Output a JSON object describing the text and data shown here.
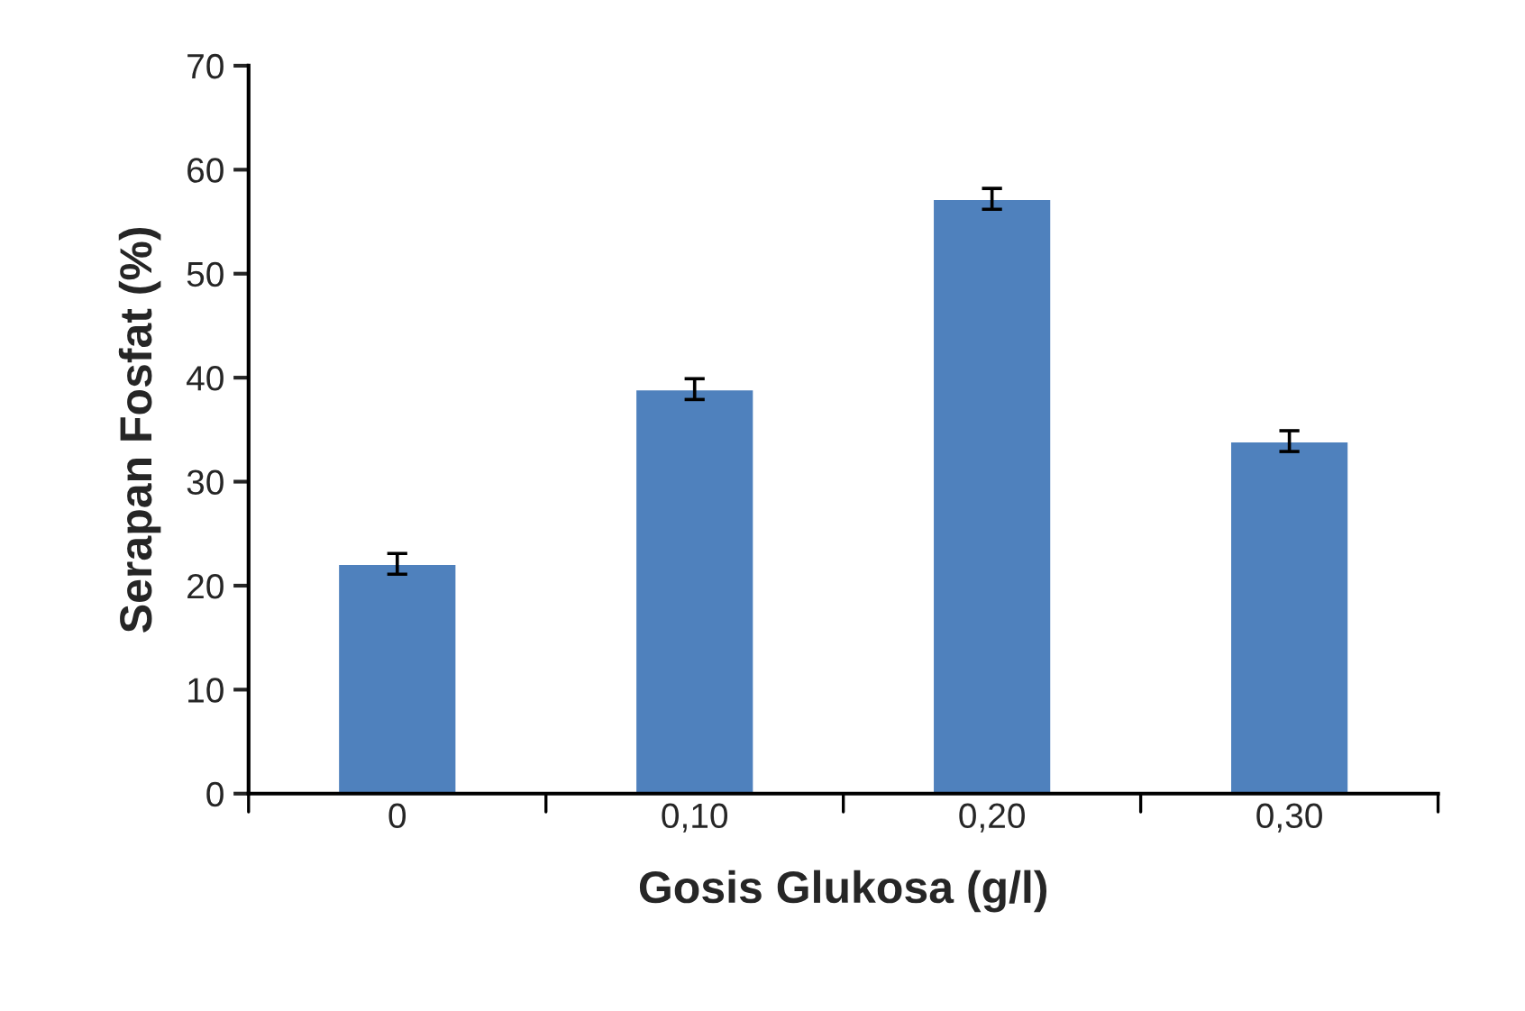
{
  "chart_data": {
    "type": "bar",
    "xlabel": "Gosis Glukosa (g/l)",
    "ylabel": "Serapan Fosfat (%)",
    "categories": [
      "0",
      "0,10",
      "0,20",
      "0,30"
    ],
    "values": [
      22.1,
      38.9,
      57.2,
      33.9
    ],
    "errors": [
      1.0,
      1.0,
      1.0,
      1.0
    ],
    "color": "#4f81bd",
    "ylim": [
      0,
      70
    ],
    "yticks": [
      0,
      10,
      20,
      30,
      40,
      50,
      60,
      70
    ]
  }
}
